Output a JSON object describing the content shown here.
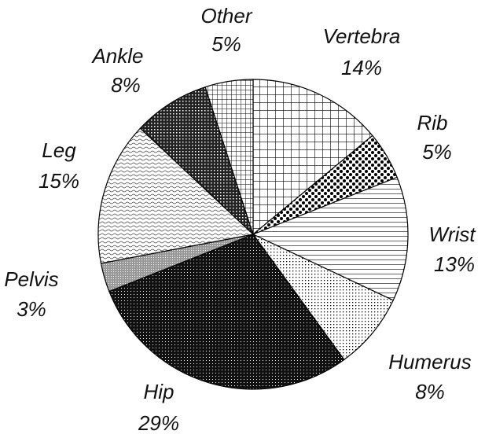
{
  "chart_data": {
    "type": "pie",
    "categories": [
      "Vertebra",
      "Rib",
      "Wrist",
      "Humerus",
      "Hip",
      "Pelvis",
      "Leg",
      "Ankle",
      "Other"
    ],
    "values": [
      14,
      5,
      13,
      8,
      29,
      3,
      15,
      8,
      5
    ],
    "value_labels": [
      "14%",
      "5%",
      "13%",
      "8%",
      "29%",
      "3%",
      "15%",
      "8%",
      "5%"
    ]
  }
}
